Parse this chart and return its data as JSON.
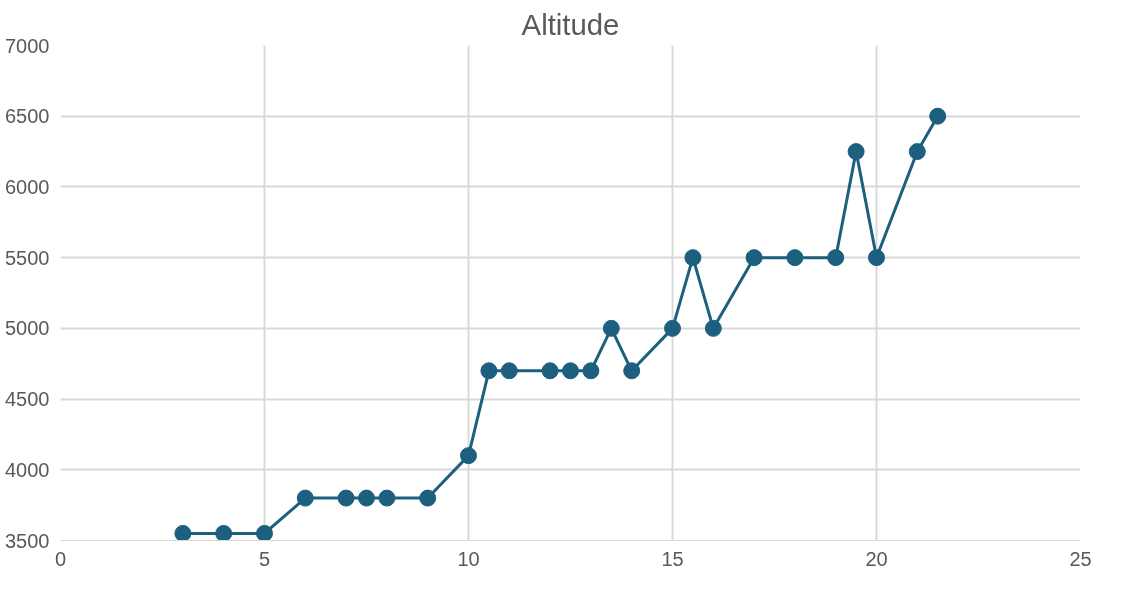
{
  "chart_data": {
    "type": "line",
    "title": "Altitude",
    "x": [
      3,
      4,
      5,
      6,
      7,
      7.5,
      8,
      9,
      10,
      10.5,
      11,
      12,
      12.5,
      13,
      13.5,
      14,
      15,
      15.5,
      16,
      17,
      18,
      19,
      19.5,
      20,
      21,
      21.5
    ],
    "series": [
      {
        "color": "#1d5f7e",
        "values": [
          3550,
          3550,
          3550,
          3800,
          3800,
          3800,
          3800,
          3800,
          4100,
          4700,
          4700,
          4700,
          4700,
          4700,
          5000,
          4700,
          5000,
          5500,
          5000,
          5500,
          5500,
          5500,
          6250,
          5500,
          6250,
          6500
        ]
      }
    ],
    "xlim": [
      0,
      25
    ],
    "xticks": [
      0,
      5,
      10,
      15,
      20,
      25
    ],
    "ylim": [
      3500,
      7000
    ],
    "yticks": [
      3500,
      4000,
      4500,
      5000,
      5500,
      6000,
      6500,
      7000
    ],
    "grid": true,
    "marker": "circle",
    "line_style": "solid"
  }
}
